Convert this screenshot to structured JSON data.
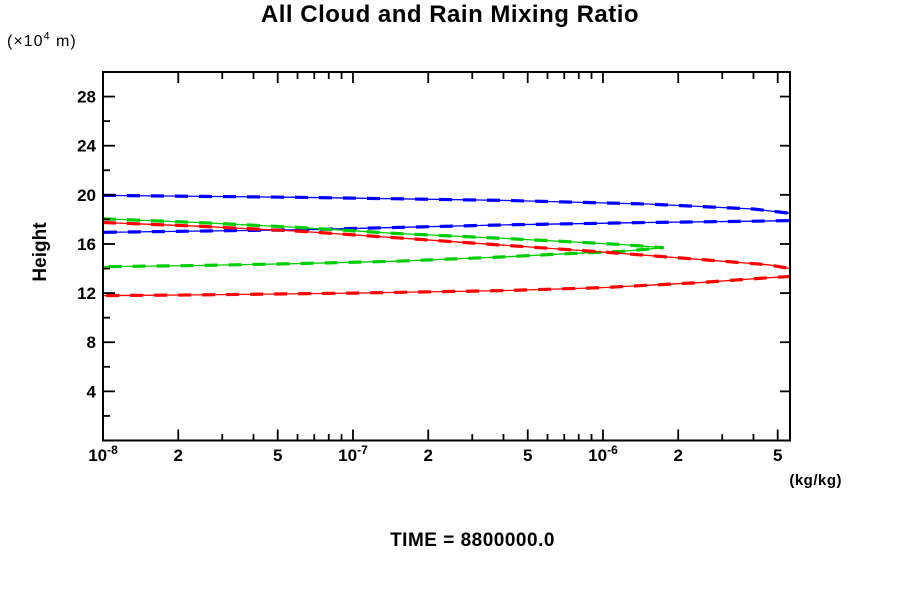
{
  "chart": {
    "title": "All Cloud and Rain Mixing Ratio",
    "ylabel": "Height",
    "y_units": {
      "pre": "(×10",
      "exp": "4",
      "post": " m)"
    },
    "x_units": "(kg/kg)",
    "time_label": "TIME = 8800000.0"
  },
  "chart_data": {
    "type": "line",
    "title": "All Cloud and Rain Mixing Ratio",
    "xlabel": "(kg/kg)",
    "ylabel": "Height",
    "y_units": "×10^4 m",
    "x_scale": "log",
    "y_scale": "linear",
    "xlim": [
      1e-08,
      5.6e-06
    ],
    "ylim": [
      0,
      30
    ],
    "grid": false,
    "legend_position": "none",
    "frame_color": "#000000",
    "x_major_ticks": [
      {
        "v": 1e-08,
        "base": "10",
        "exp": "-8"
      },
      {
        "v": 2e-08,
        "base": "2"
      },
      {
        "v": 5e-08,
        "base": "5"
      },
      {
        "v": 1e-07,
        "base": "10",
        "exp": "-7"
      },
      {
        "v": 2e-07,
        "base": "2"
      },
      {
        "v": 5e-07,
        "base": "5"
      },
      {
        "v": 1e-06,
        "base": "10",
        "exp": "-6"
      },
      {
        "v": 2e-06,
        "base": "2"
      },
      {
        "v": 5e-06,
        "base": "5"
      }
    ],
    "x_minor_ticks": [
      3e-08,
      4e-08,
      6e-08,
      7e-08,
      8e-08,
      9e-08,
      3e-07,
      4e-07,
      6e-07,
      7e-07,
      8e-07,
      9e-07,
      3e-06,
      4e-06
    ],
    "y_major_ticks": [
      4,
      8,
      12,
      16,
      20,
      24,
      28
    ],
    "y_minor_ticks": [
      2,
      6,
      10,
      14,
      18,
      22,
      26
    ],
    "series": [
      {
        "name": "blue",
        "color": "#0000ff",
        "clipped_at_right_edge": true,
        "points": [
          [
            1e-08,
            19.95
          ],
          [
            6e-08,
            19.8
          ],
          [
            4e-07,
            19.55
          ],
          [
            1.5e-06,
            19.25
          ],
          [
            4e-06,
            18.85
          ],
          [
            5.6e-06,
            18.5
          ],
          [
            5.6e-06,
            17.9
          ],
          [
            4e-06,
            17.85
          ],
          [
            1.5e-06,
            17.75
          ],
          [
            4e-07,
            17.55
          ],
          [
            6e-08,
            17.15
          ],
          [
            1e-08,
            16.95
          ]
        ]
      },
      {
        "name": "green",
        "color": "#00cc00",
        "clipped_at_right_edge": false,
        "points": [
          [
            1e-08,
            18.05
          ],
          [
            2.4e-08,
            17.75
          ],
          [
            6e-08,
            17.35
          ],
          [
            1.5e-07,
            16.85
          ],
          [
            4e-07,
            16.45
          ],
          [
            7e-07,
            16.2
          ],
          [
            1.2e-06,
            15.95
          ],
          [
            1.75e-06,
            15.7
          ],
          [
            1.2e-06,
            15.4
          ],
          [
            7e-07,
            15.2
          ],
          [
            4e-07,
            14.95
          ],
          [
            1.5e-07,
            14.6
          ],
          [
            6e-08,
            14.4
          ],
          [
            2.4e-08,
            14.25
          ],
          [
            1e-08,
            14.15
          ]
        ]
      },
      {
        "name": "red",
        "color": "#ff0000",
        "clipped_at_right_edge": true,
        "points": [
          [
            1e-08,
            17.75
          ],
          [
            2.4e-08,
            17.45
          ],
          [
            6e-08,
            17.05
          ],
          [
            1.5e-07,
            16.5
          ],
          [
            4e-07,
            15.9
          ],
          [
            1e-06,
            15.35
          ],
          [
            2.4e-06,
            14.75
          ],
          [
            4.6e-06,
            14.3
          ],
          [
            5.6e-06,
            14.0
          ],
          [
            5.6e-06,
            13.35
          ],
          [
            4.6e-06,
            13.25
          ],
          [
            2.4e-06,
            12.85
          ],
          [
            1e-06,
            12.45
          ],
          [
            4e-07,
            12.2
          ],
          [
            1e-07,
            12.0
          ],
          [
            2.4e-08,
            11.85
          ],
          [
            1e-08,
            11.8
          ]
        ]
      }
    ],
    "annotations": [
      "TIME = 8800000.0"
    ]
  }
}
